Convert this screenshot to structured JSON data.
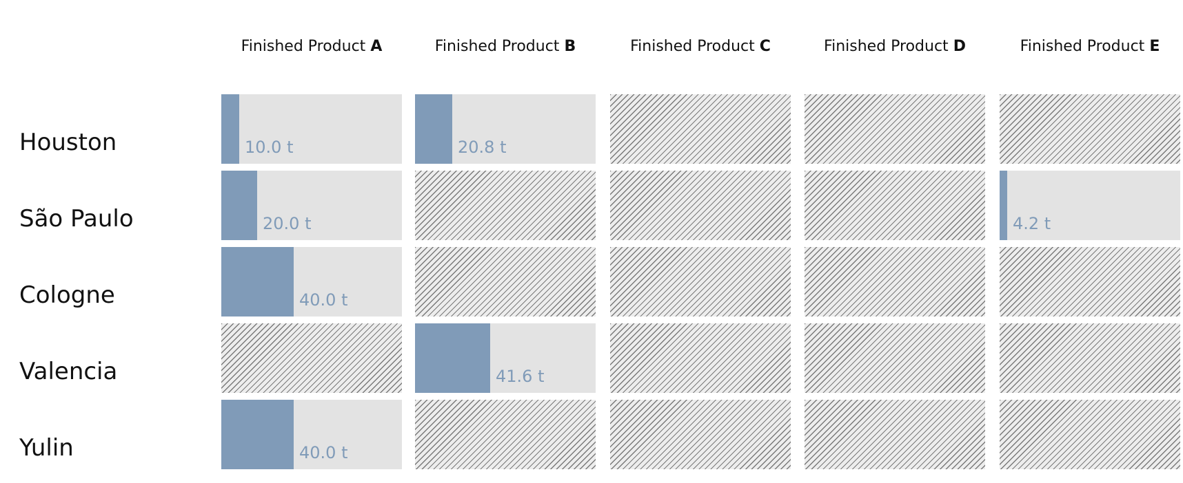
{
  "chart_data": {
    "type": "table",
    "columns": [
      {
        "prefix": "Finished Product",
        "letter": "A"
      },
      {
        "prefix": "Finished Product",
        "letter": "B"
      },
      {
        "prefix": "Finished Product",
        "letter": "C"
      },
      {
        "prefix": "Finished Product",
        "letter": "D"
      },
      {
        "prefix": "Finished Product",
        "letter": "E"
      }
    ],
    "rows": [
      "Houston",
      "São Paulo",
      "Cologne",
      "Valencia",
      "Yulin"
    ],
    "unit": "t",
    "scale_max": 100,
    "values": [
      [
        10.0,
        20.8,
        null,
        null,
        null
      ],
      [
        20.0,
        null,
        null,
        null,
        4.2
      ],
      [
        40.0,
        null,
        null,
        null,
        null
      ],
      [
        null,
        41.6,
        null,
        null,
        null
      ],
      [
        40.0,
        null,
        null,
        null,
        null
      ]
    ],
    "labels": [
      [
        "10.0 t",
        "20.8 t",
        null,
        null,
        null
      ],
      [
        "20.0 t",
        null,
        null,
        null,
        "4.2 t"
      ],
      [
        "40.0 t",
        null,
        null,
        null,
        null
      ],
      [
        null,
        "41.6 t",
        null,
        null,
        null
      ],
      [
        "40.0 t",
        null,
        null,
        null,
        null
      ]
    ],
    "colors": {
      "bar": "#809bb8",
      "cell_background": "#e3e3e3",
      "no_data_hatch": "#7a7a7a"
    }
  }
}
